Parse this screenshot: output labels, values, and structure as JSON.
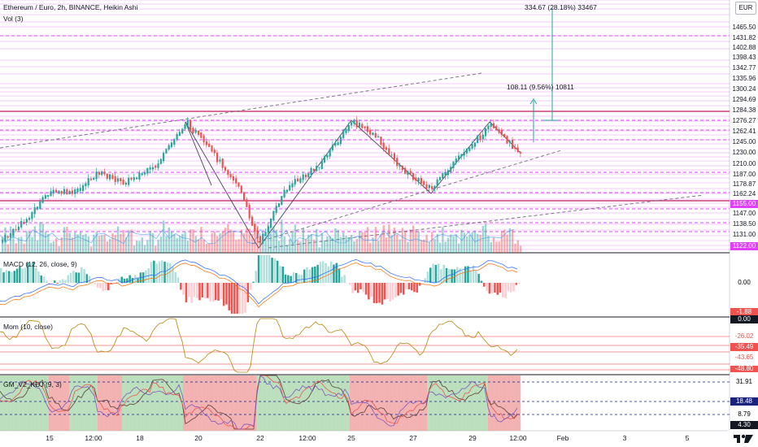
{
  "header": {
    "title": "Ethereum / Euro, 2h, BINANCE, Heikin Ashi",
    "vol": "Vol (3)"
  },
  "currency_button": "EUR",
  "annotations": {
    "long_measure": "334.67 (28.18%) 33467",
    "short_measure": "108.11 (9.56%) 10811"
  },
  "price_axis": [
    {
      "text": "1465.50",
      "bg": "#ffffff",
      "fg": "#131722"
    },
    {
      "text": "1431.82",
      "bg": "#ffffff",
      "fg": "#131722"
    },
    {
      "text": "1402.88",
      "bg": "#ffffff",
      "fg": "#131722"
    },
    {
      "text": "1398.43",
      "bg": "#ffffff",
      "fg": "#131722"
    },
    {
      "text": "1342.77",
      "bg": "#ffffff",
      "fg": "#131722"
    },
    {
      "text": "1335.96",
      "bg": "#ffffff",
      "fg": "#131722"
    },
    {
      "text": "1300.24",
      "bg": "#ffffff",
      "fg": "#131722"
    },
    {
      "text": "1294.69",
      "bg": "#ffffff",
      "fg": "#131722"
    },
    {
      "text": "1284.38",
      "bg": "#ffffff",
      "fg": "#131722"
    },
    {
      "text": "1276.27",
      "bg": "#ffffff",
      "fg": "#131722"
    },
    {
      "text": "1262.41",
      "bg": "#ffffff",
      "fg": "#131722"
    },
    {
      "text": "1245.00",
      "bg": "#ffffff",
      "fg": "#131722"
    },
    {
      "text": "1230.00",
      "bg": "#ffffff",
      "fg": "#131722"
    },
    {
      "text": "1210.00",
      "bg": "#ffffff",
      "fg": "#131722"
    },
    {
      "text": "1187.00",
      "bg": "#ffffff",
      "fg": "#131722"
    },
    {
      "text": "1178.87",
      "bg": "#ffffff",
      "fg": "#131722"
    },
    {
      "text": "1162.24",
      "bg": "#ffffff",
      "fg": "#131722"
    },
    {
      "text": "1155.00",
      "bg": "#e040fb",
      "fg": "#ffffff"
    },
    {
      "text": "1147.00",
      "bg": "#ffffff",
      "fg": "#131722"
    },
    {
      "text": "1138.50",
      "bg": "#ffffff",
      "fg": "#131722"
    },
    {
      "text": "1131.00",
      "bg": "#ffffff",
      "fg": "#131722"
    },
    {
      "text": "1122.00",
      "bg": "#e040fb",
      "fg": "#ffffff"
    }
  ],
  "macd": {
    "label": "MACD (12, 26, close, 9)",
    "axis": [
      "0.00",
      "-1.88",
      "0.00"
    ]
  },
  "mom": {
    "label": "Mom (10, close)",
    "axis": [
      "-26.02",
      "-35.49",
      "-43.65",
      "-48.80"
    ]
  },
  "gm": {
    "label": "GM_V2_KDJ (9, 3)",
    "axis": [
      "31.91",
      "18.48",
      "8.79",
      "4.30"
    ]
  },
  "time_axis": [
    "15",
    "12:00",
    "18",
    "20",
    "22",
    "12:00",
    "25",
    "27",
    "29",
    "12:00",
    "Feb",
    "3",
    "5"
  ],
  "colors": {
    "up": "#26a69a",
    "down": "#ef5350",
    "level": "#e040fb",
    "trend": "#787b86"
  }
}
